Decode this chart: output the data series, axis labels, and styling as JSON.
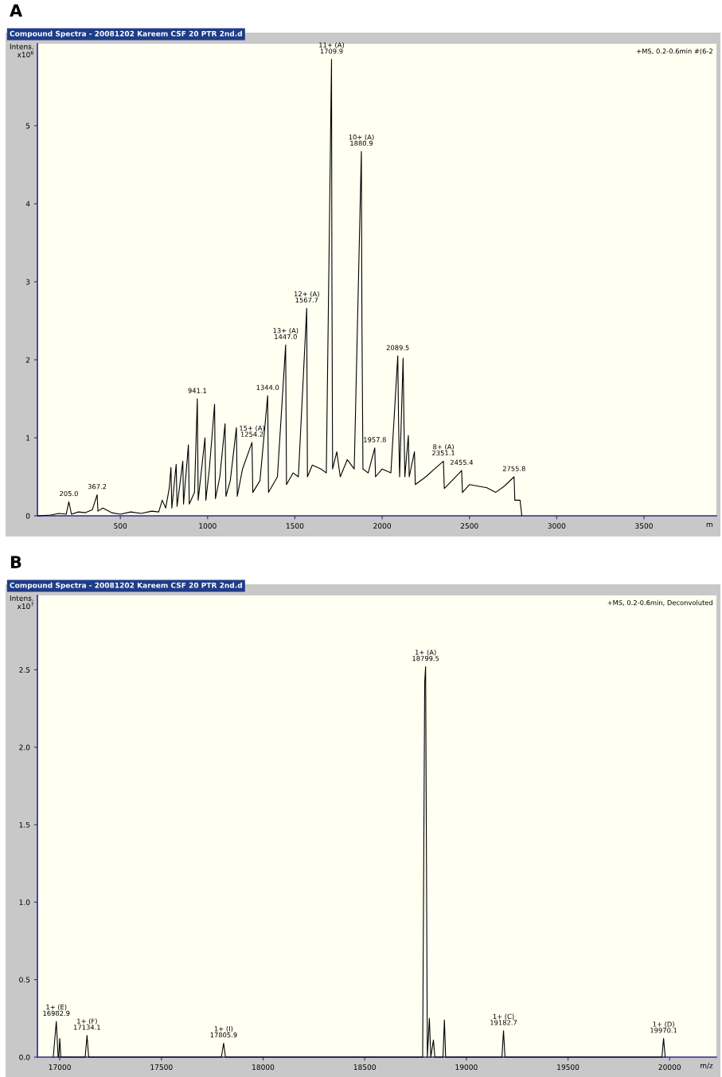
{
  "chart_data": [
    {
      "type": "line",
      "title": "A",
      "subtitle": "Compound Spectra - 20081202 Kareem CSF 20 PTR 2nd.d",
      "ylabel": "Intens.\nx10$^{6}$",
      "xlabel": "m",
      "xlim": [
        25,
        3915
      ],
      "xticks": [
        500,
        1000,
        1500,
        2000,
        2500,
        3000,
        3500
      ],
      "ylim": [
        0,
        6.05
      ],
      "yticks": [
        0,
        1,
        2,
        3,
        4,
        5
      ],
      "grid": false,
      "legend": false,
      "series": [
        {
          "color": "#000000",
          "x": [
            30,
            100,
            150,
            190,
            205,
            220,
            260,
            300,
            340,
            367.2,
            372,
            400,
            450,
            500,
            560,
            620,
            680,
            720,
            740,
            760,
            780,
            790,
            795,
            820,
            825,
            858,
            862,
            890,
            895,
            925,
            941.1,
            946,
            985,
            990,
            1010,
            1040,
            1045,
            1070,
            1100,
            1105,
            1130,
            1165,
            1170,
            1200,
            1254.2,
            1259,
            1300,
            1344.0,
            1349,
            1400,
            1447.0,
            1452,
            1490,
            1520,
            1567.7,
            1572,
            1600,
            1650,
            1680,
            1709.9,
            1712,
            1716,
            1740,
            1760,
            1800,
            1840,
            1880.9,
            1884,
            1890,
            1920,
            1957.8,
            1962,
            2000,
            2050,
            2089.5,
            2094,
            2100,
            2120,
            2125,
            2130,
            2150,
            2155,
            2185,
            2190,
            2250,
            2300,
            2351.1,
            2356,
            2400,
            2455.4,
            2460,
            2500,
            2550,
            2600,
            2650,
            2700,
            2755.8,
            2760,
            2790,
            2800
          ],
          "values": [
            0,
            0.01,
            0.03,
            0.02,
            0.18,
            0.02,
            0.05,
            0.04,
            0.08,
            0.27,
            0.06,
            0.1,
            0.04,
            0.02,
            0.05,
            0.03,
            0.06,
            0.05,
            0.2,
            0.1,
            0.35,
            0.62,
            0.1,
            0.66,
            0.12,
            0.7,
            0.15,
            0.91,
            0.15,
            0.3,
            1.5,
            0.2,
            1.0,
            0.2,
            0.6,
            1.43,
            0.22,
            0.5,
            1.18,
            0.25,
            0.45,
            1.13,
            0.25,
            0.6,
            0.94,
            0.3,
            0.45,
            1.54,
            0.3,
            0.5,
            2.19,
            0.4,
            0.55,
            0.5,
            2.66,
            0.5,
            0.65,
            0.6,
            0.55,
            5.85,
            3.2,
            0.6,
            0.82,
            0.5,
            0.72,
            0.6,
            4.67,
            2.55,
            0.6,
            0.55,
            0.87,
            0.5,
            0.6,
            0.55,
            2.05,
            1.2,
            0.5,
            2.02,
            1.17,
            0.5,
            1.03,
            0.5,
            0.82,
            0.4,
            0.5,
            0.6,
            0.7,
            0.35,
            0.45,
            0.58,
            0.3,
            0.4,
            0.38,
            0.36,
            0.3,
            0.38,
            0.5,
            0.2,
            0.2,
            0
          ]
        }
      ],
      "annotations": [
        "+MS, 0.2-0.6min #(6-2",
        {
          "text": "205.0",
          "x": 205.0,
          "y": 0.18
        },
        {
          "text": "367.2",
          "x": 367.2,
          "y": 0.27
        },
        {
          "text": "941.1",
          "x": 941.1,
          "y": 1.5
        },
        {
          "text": "15+ (A)\n1254.2",
          "x": 1254.2,
          "y": 0.94
        },
        {
          "text": "1344.0",
          "x": 1344.0,
          "y": 1.54
        },
        {
          "text": "13+ (A)\n1447.0",
          "x": 1447.0,
          "y": 2.19
        },
        {
          "text": "12+ (A)\n1567.7",
          "x": 1567.7,
          "y": 2.66
        },
        {
          "text": "11+ (A)\n1709.9",
          "x": 1709.9,
          "y": 5.85
        },
        {
          "text": "10+ (A)\n1880.9",
          "x": 1880.9,
          "y": 4.67
        },
        {
          "text": "1957.8",
          "x": 1957.8,
          "y": 0.87
        },
        {
          "text": "2089.5",
          "x": 2089.5,
          "y": 2.05
        },
        {
          "text": "8+ (A)\n2351.1",
          "x": 2351.1,
          "y": 0.7
        },
        {
          "text": "2455.4",
          "x": 2455.4,
          "y": 0.58
        },
        {
          "text": "2755.8",
          "x": 2755.8,
          "y": 0.5
        }
      ]
    },
    {
      "type": "line",
      "title": "B",
      "subtitle": "Compound Spectra - 20081202 Kareem CSF 20 PTR 2nd.d",
      "ylabel": "Intens.\nx10$^{7}$",
      "xlabel": "m/z",
      "xlim": [
        16890,
        20230
      ],
      "xticks": [
        17000,
        17500,
        18000,
        18500,
        19000,
        19500,
        20000
      ],
      "ylim": [
        0,
        2.98
      ],
      "yticks": [
        {
          "value": 0,
          "label": "0.0"
        },
        0.5,
        {
          "value": 1,
          "label": "1.0"
        },
        1.5,
        {
          "value": 2,
          "label": "2.0"
        },
        2.5
      ],
      "grid": false,
      "legend": false,
      "series": [
        {
          "color": "#000000",
          "x": [
            16968,
            16982.9,
            16992,
            16995,
            17000,
            17005,
            17125,
            17134.1,
            17142,
            17795,
            17805.9,
            17815,
            18785,
            18795,
            18799.5,
            18808,
            18818,
            18825,
            18838,
            18845,
            18885,
            18892,
            18898,
            19175,
            19182.7,
            19190,
            19962,
            19970.1,
            19978
          ],
          "values": [
            0,
            0.23,
            0,
            0,
            0.12,
            0,
            0,
            0.14,
            0,
            0,
            0.09,
            0,
            0,
            2.42,
            2.52,
            0,
            0.25,
            0,
            0.11,
            0,
            0,
            0.24,
            0,
            0,
            0.17,
            0,
            0,
            0.12,
            0
          ]
        }
      ],
      "annotations": [
        "+MS, 0.2-0.6min, Deconvoluted",
        {
          "text": "1+ (E)\n16982.9",
          "x": 16982.9,
          "y": 0.23
        },
        {
          "text": "1+ (F)\n17134.1",
          "x": 17134.1,
          "y": 0.14
        },
        {
          "text": "1+ (I)\n17805.9",
          "x": 17805.9,
          "y": 0.09
        },
        {
          "text": "1+ (A)\n18799.5",
          "x": 18799.5,
          "y": 2.52
        },
        {
          "text": "1+ (C)\n19182.7",
          "x": 19182.7,
          "y": 0.17
        },
        {
          "text": "1+ (D)\n19970.1",
          "x": 19970.1,
          "y": 0.12
        }
      ]
    }
  ]
}
